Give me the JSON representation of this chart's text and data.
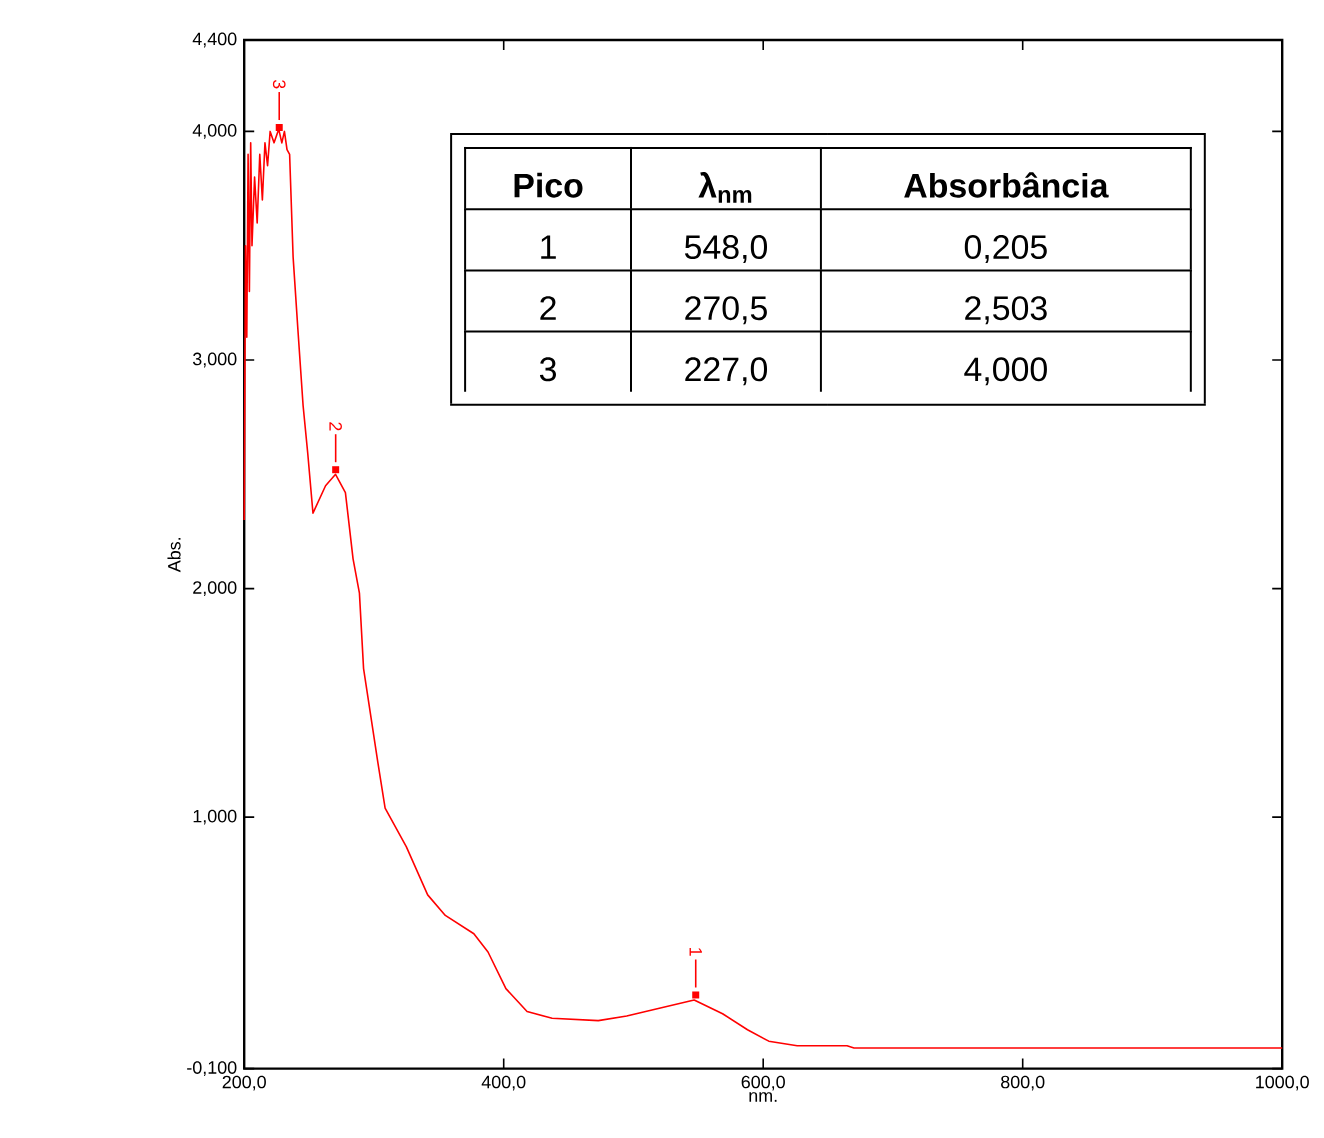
{
  "chart_data": {
    "type": "line",
    "xlabel": "nm.",
    "ylabel": "Abs.",
    "marker": "none",
    "x": [
      200,
      201,
      202,
      203,
      204,
      205,
      206,
      208,
      210,
      212,
      214,
      216,
      218,
      220,
      223,
      226,
      227,
      229,
      231,
      233,
      235,
      237.7,
      241.3,
      245.4,
      249,
      253,
      262.7,
      270.4,
      278,
      283.9,
      288.8,
      292,
      303,
      308.6,
      325,
      341.4,
      355,
      377,
      387.9,
      401.7,
      418,
      437.3,
      472.9,
      494.8,
      516.7,
      546.8,
      568.7,
      587.9,
      604.3,
      626.2,
      664.6,
      670,
      800,
      1000
    ],
    "series": [
      {
        "color": "#ff0000",
        "values": [
          2.3,
          3.5,
          3.1,
          3.9,
          3.3,
          3.95,
          3.5,
          3.8,
          3.6,
          3.9,
          3.7,
          3.95,
          3.85,
          4.0,
          3.95,
          4.0,
          4.0,
          3.95,
          4.0,
          3.92,
          3.9,
          3.45,
          3.14,
          2.8,
          2.59,
          2.33,
          2.45,
          2.5,
          2.42,
          2.13,
          1.98,
          1.65,
          1.24,
          1.04,
          0.87,
          0.66,
          0.57,
          0.49,
          0.41,
          0.25,
          0.15,
          0.12,
          0.11,
          0.13,
          0.16,
          0.2,
          0.14,
          0.07,
          0.02,
          0.0,
          0.0,
          -0.01,
          -0.01,
          -0.01
        ]
      }
    ],
    "xlim": [
      200,
      1000
    ],
    "ylim": [
      -0.1,
      4.4
    ],
    "xticks": [
      {
        "value": 200,
        "label": "200,0"
      },
      {
        "value": 400,
        "label": "400,0"
      },
      {
        "value": 600,
        "label": "600,0"
      },
      {
        "value": 800,
        "label": "800,0"
      },
      {
        "value": 1000,
        "label": "1000,0"
      }
    ],
    "yticks": [
      {
        "value": -0.1,
        "label": "-0,100"
      },
      {
        "value": 1,
        "label": "1,000"
      },
      {
        "value": 2,
        "label": "2,000"
      },
      {
        "value": 3,
        "label": "3,000"
      },
      {
        "value": 4,
        "label": "4,000"
      },
      {
        "value": 4.4,
        "label": "4,400"
      }
    ],
    "annotations": [
      {
        "text": "3",
        "x": 227,
        "y": 4.0
      },
      {
        "text": "2",
        "x": 270.5,
        "y": 2.503
      },
      {
        "text": "1",
        "x": 548,
        "y": 0.205
      },
      "Pico",
      "λ$_{nm}$",
      "Absorbância",
      "1",
      "548,0",
      "0,205",
      "2",
      "270,5",
      "2,503",
      "3",
      "227,0",
      "4,000"
    ]
  }
}
